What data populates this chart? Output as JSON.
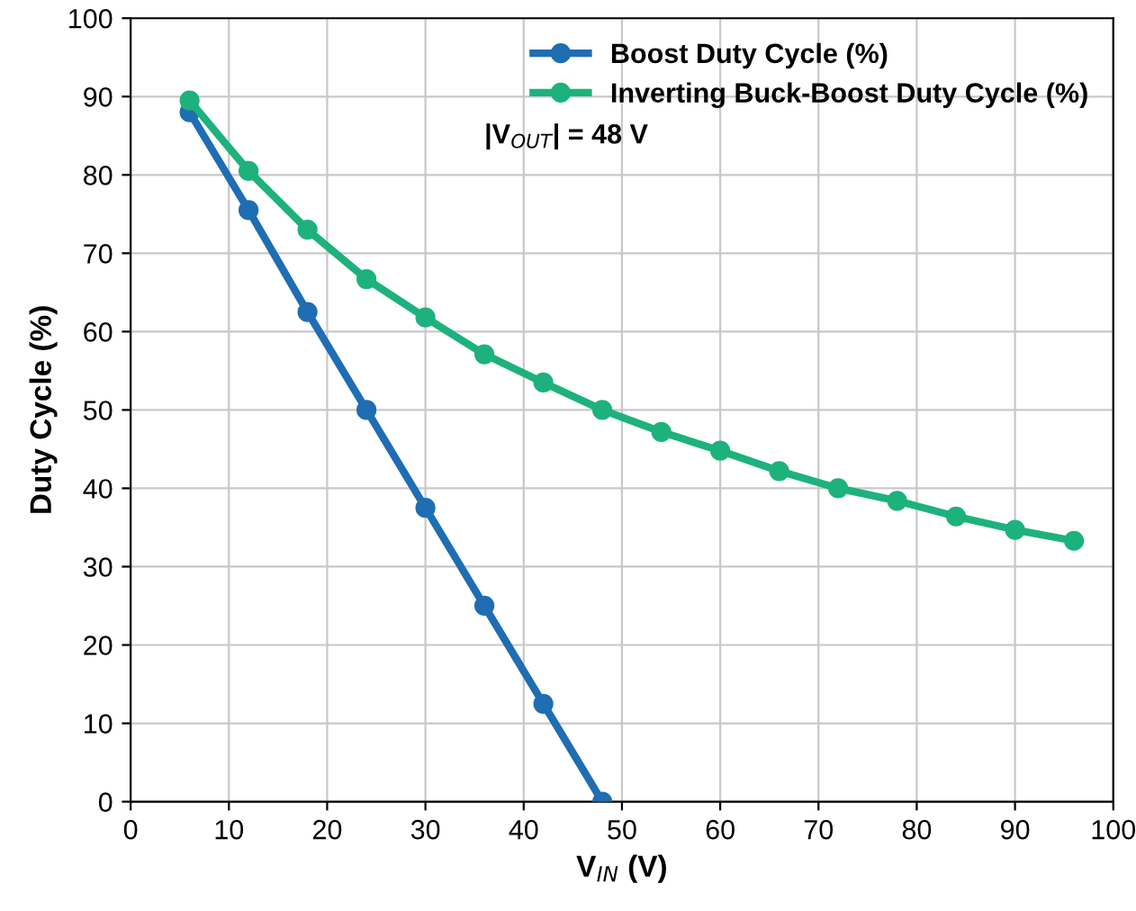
{
  "chart_data": {
    "type": "line",
    "xlabel": "V$_{IN}$ (V)",
    "ylabel": "Duty Cycle (%)",
    "xlim": [
      0,
      100
    ],
    "xticks": [
      0,
      10,
      20,
      30,
      40,
      50,
      60,
      70,
      80,
      90,
      100
    ],
    "ylim": [
      0,
      100
    ],
    "yticks": [
      0,
      10,
      20,
      30,
      40,
      50,
      60,
      70,
      80,
      90,
      100
    ],
    "grid": true,
    "legend": "top right",
    "marker": "circle",
    "line_style": "solid",
    "annotations": [
      "|V$_{OUT}$| = 48 V"
    ],
    "series": [
      {
        "name": "Boost Duty Cycle (%)",
        "color": "#1f6db3",
        "x": [
          6,
          12,
          18,
          24,
          30,
          36,
          42,
          48
        ],
        "values": [
          88,
          75.5,
          62.5,
          50,
          37.5,
          25,
          12.5,
          0
        ]
      },
      {
        "name": "Inverting Buck-Boost Duty Cycle (%)",
        "color": "#1db27c",
        "x": [
          6,
          12,
          18,
          24,
          30,
          36,
          42,
          48,
          54,
          60,
          66,
          72,
          78,
          84,
          90,
          96
        ],
        "values": [
          89.5,
          80.5,
          73,
          66.7,
          61.8,
          57.1,
          53.5,
          50,
          47.2,
          44.8,
          42.2,
          40,
          38.4,
          36.4,
          34.7,
          33.3
        ]
      }
    ]
  }
}
